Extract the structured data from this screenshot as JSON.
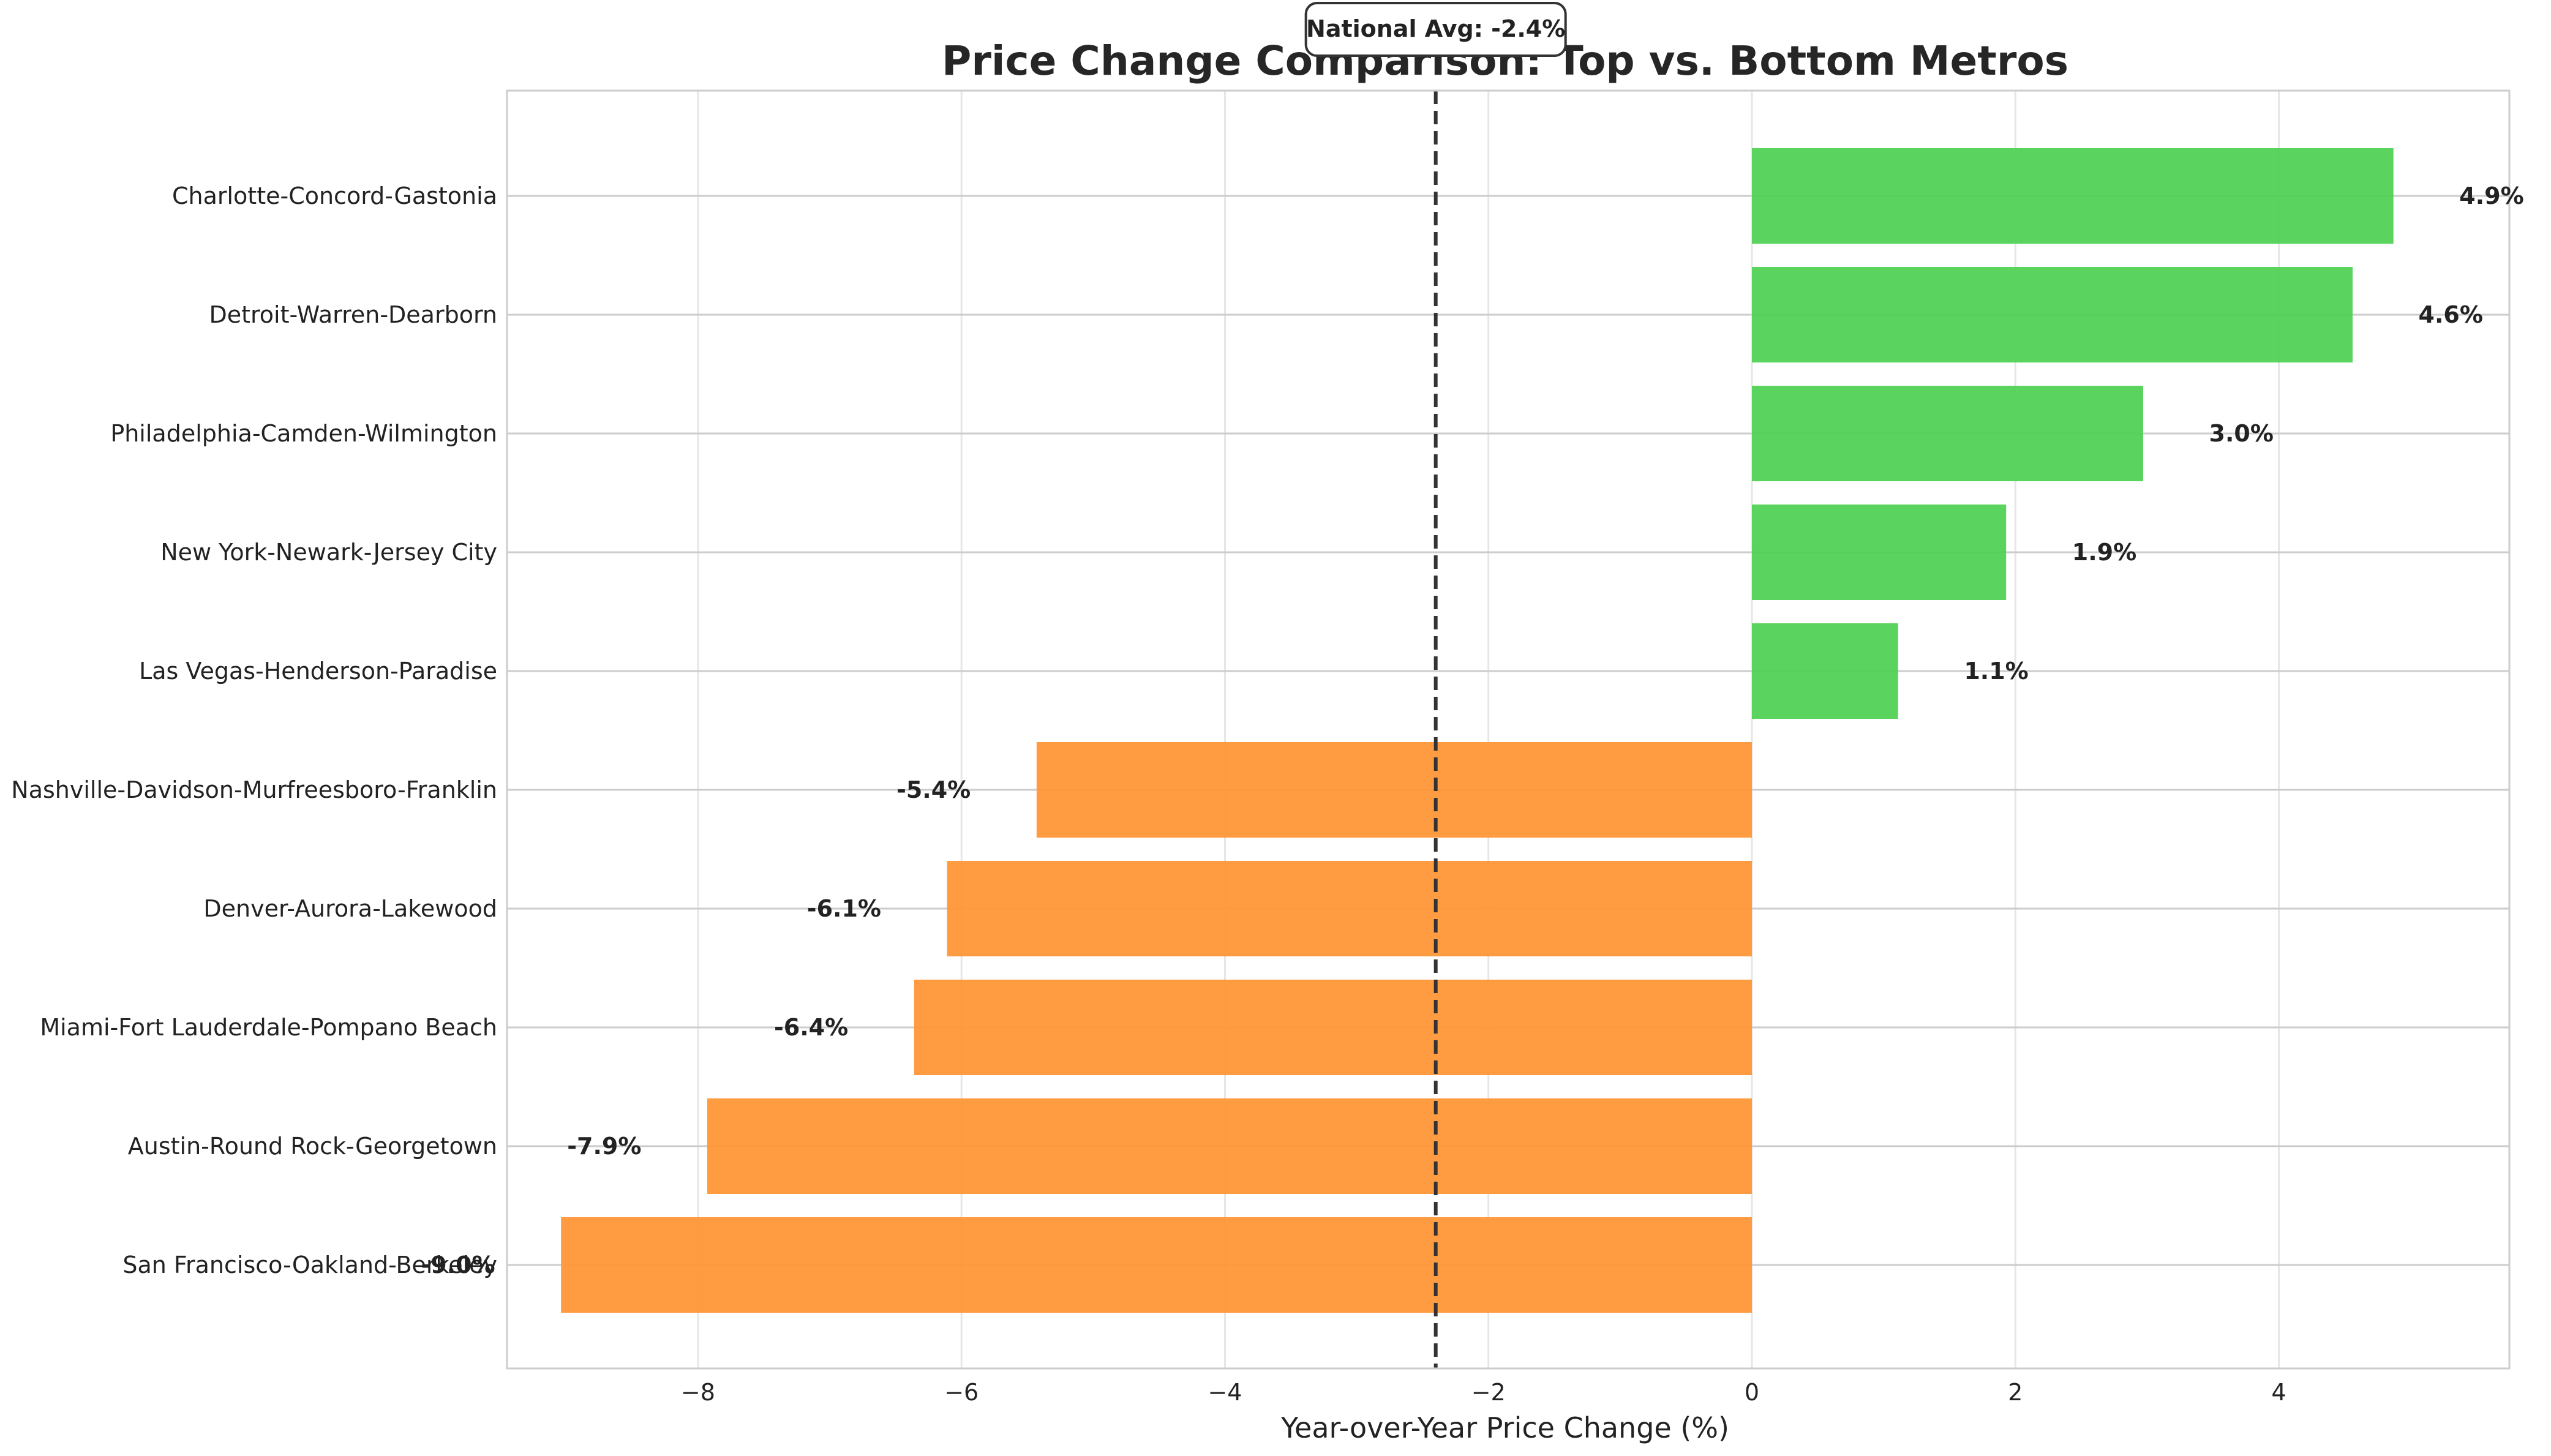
{
  "chart_data": {
    "type": "bar",
    "orientation": "horizontal",
    "title": "Price Change Comparison: Top vs. Bottom Metros",
    "xlabel": "Year-over-Year Price Change (%)",
    "ylabel": "",
    "xlim": [
      -9.45,
      5.75
    ],
    "xticks": [
      -8,
      -6,
      -4,
      -2,
      0,
      2,
      4
    ],
    "xtick_labels": [
      "−8",
      "−6",
      "−4",
      "−2",
      "0",
      "2",
      "4"
    ],
    "grid": true,
    "categories": [
      "Charlotte-Concord-Gastonia",
      "Detroit-Warren-Dearborn",
      "Philadelphia-Camden-Wilmington",
      "New York-Newark-Jersey City",
      "Las Vegas-Henderson-Paradise",
      "Nashville-Davidson-Murfreesboro-Franklin",
      "Denver-Aurora-Lakewood",
      "Miami-Fort Lauderdale-Pompano Beach",
      "Austin-Round Rock-Georgetown",
      "San Francisco-Oakland-Berkeley"
    ],
    "values": [
      4.87,
      4.56,
      2.97,
      1.93,
      1.11,
      -5.43,
      -6.11,
      -6.36,
      -7.93,
      -9.04
    ],
    "value_labels": [
      "4.9%",
      "4.6%",
      "3.0%",
      "1.9%",
      "1.1%",
      "-5.4%",
      "-6.1%",
      "-6.4%",
      "-7.9%",
      "-9.0%"
    ],
    "colors": {
      "positive": "#4dd152",
      "negative": "#ff9333"
    },
    "reference_line": {
      "value": -2.4,
      "label": "National Avg: -2.4%",
      "style": "dashed",
      "color": "#333333"
    }
  }
}
